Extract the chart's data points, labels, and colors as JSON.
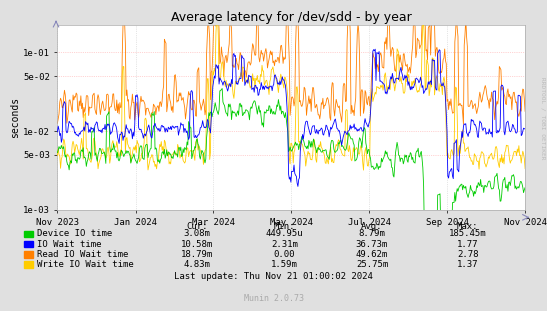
{
  "title": "Average latency for /dev/sdd - by year",
  "ylabel": "seconds",
  "right_label": "RRDTOOL / TOBI OETIKER",
  "background_color": "#e0e0e0",
  "plot_bg_color": "#ffffff",
  "yticks": [
    0.001,
    0.005,
    0.01,
    0.05,
    0.1
  ],
  "ytick_labels": [
    "1e-03",
    "5e-03",
    "1e-02",
    "5e-02",
    "1e-01"
  ],
  "series": [
    {
      "name": "Device IO time",
      "color": "#00cc00"
    },
    {
      "name": "IO Wait time",
      "color": "#0000ff"
    },
    {
      "name": "Read IO Wait time",
      "color": "#ff8000"
    },
    {
      "name": "Write IO Wait time",
      "color": "#ffcc00"
    }
  ],
  "legend_cols": [
    "Cur:",
    "Min:",
    "Avg:",
    "Max:"
  ],
  "legend_data": [
    [
      "3.08m",
      "449.95u",
      "8.79m",
      "185.45m"
    ],
    [
      "10.58m",
      "2.31m",
      "36.73m",
      "1.77"
    ],
    [
      "18.79m",
      "0.00",
      "49.62m",
      "2.78"
    ],
    [
      "4.83m",
      "1.59m",
      "25.75m",
      "1.37"
    ]
  ],
  "last_update": "Last update: Thu Nov 21 01:00:02 2024",
  "munin_version": "Munin 2.0.73",
  "xticklabels": [
    "Nov 2023",
    "Jan 2024",
    "Mar 2024",
    "May 2024",
    "Jul 2024",
    "Sep 2024",
    "Nov 2024"
  ],
  "xtick_positions": [
    0.0,
    0.167,
    0.333,
    0.5,
    0.667,
    0.833,
    1.0
  ],
  "num_points": 600,
  "seed": 42
}
